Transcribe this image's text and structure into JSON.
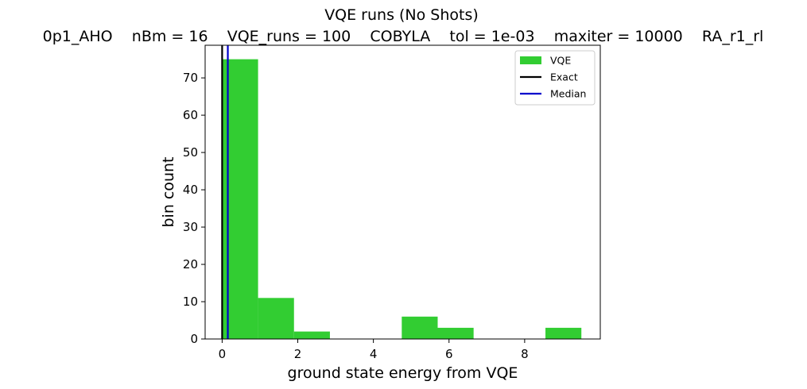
{
  "chart_data": {
    "type": "bar",
    "title": "VQE runs (No Shots)",
    "subtitle": "0p1_AHO    nBm = 16    VQE_runs = 100    COBYLA    tol = 1e-03    maxiter = 10000    RA_r1_rl",
    "xlabel": "ground state energy from VQE",
    "ylabel": "bin count",
    "xlim": [
      -0.45,
      10.0
    ],
    "ylim": [
      0,
      78.75
    ],
    "xticks": [
      0,
      2,
      4,
      6,
      8
    ],
    "yticks": [
      0,
      10,
      20,
      30,
      40,
      50,
      60,
      70
    ],
    "bins": [
      {
        "x0": 0.0,
        "x1": 0.95,
        "count": 75
      },
      {
        "x0": 0.95,
        "x1": 1.9,
        "count": 11
      },
      {
        "x0": 1.9,
        "x1": 2.85,
        "count": 2
      },
      {
        "x0": 2.85,
        "x1": 3.8,
        "count": 0
      },
      {
        "x0": 3.8,
        "x1": 4.75,
        "count": 0
      },
      {
        "x0": 4.75,
        "x1": 5.7,
        "count": 6
      },
      {
        "x0": 5.7,
        "x1": 6.65,
        "count": 3
      },
      {
        "x0": 6.65,
        "x1": 7.6,
        "count": 0
      },
      {
        "x0": 7.6,
        "x1": 8.55,
        "count": 0
      },
      {
        "x0": 8.55,
        "x1": 9.5,
        "count": 3
      }
    ],
    "exact": 0.0,
    "median": 0.15,
    "grid": false,
    "legend_position": "top-right",
    "legend": [
      {
        "label": "VQE",
        "kind": "patch",
        "color": "#32cd32"
      },
      {
        "label": "Exact",
        "kind": "line",
        "color": "#000000"
      },
      {
        "label": "Median",
        "kind": "line",
        "color": "#0000cc"
      }
    ]
  }
}
